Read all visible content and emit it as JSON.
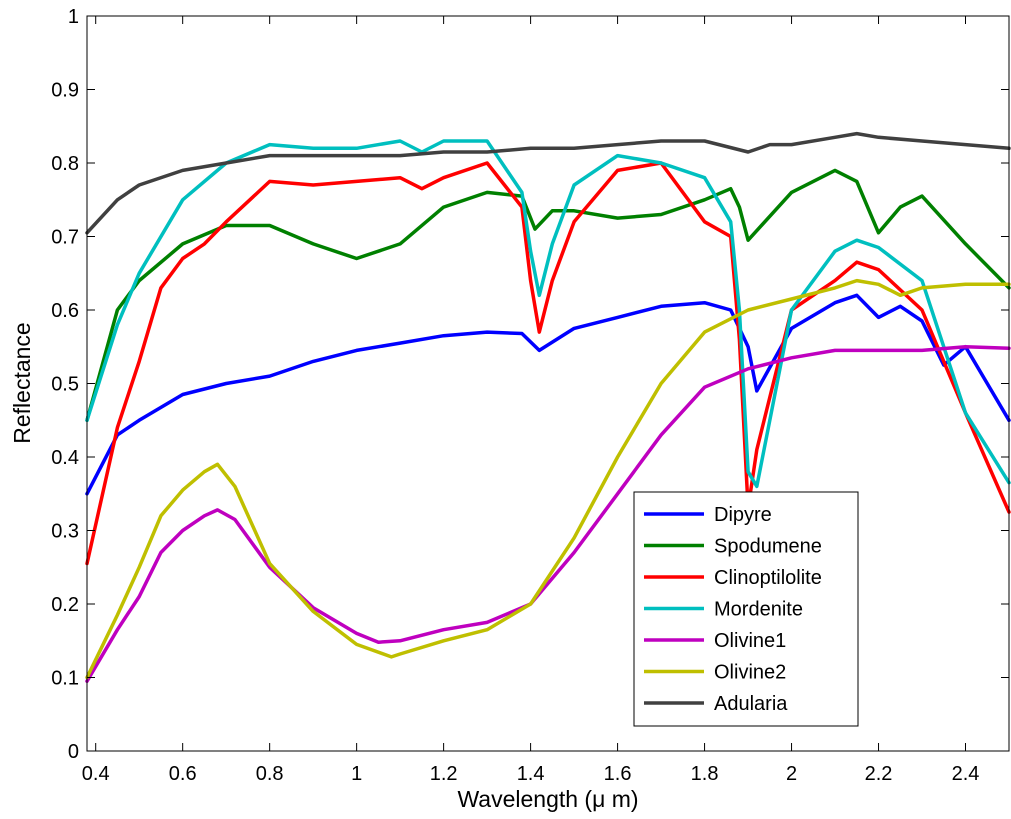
{
  "chart_data": {
    "type": "line",
    "xlabel": "Wavelength (μ m)",
    "ylabel": "Reflectance",
    "xlim": [
      0.38,
      2.5
    ],
    "ylim": [
      0,
      1
    ],
    "x_ticks": [
      "0.4",
      "0.6",
      "0.8",
      "1",
      "1.2",
      "1.4",
      "1.6",
      "1.8",
      "2",
      "2.2",
      "2.4"
    ],
    "y_ticks": [
      "0",
      "0.1",
      "0.2",
      "0.3",
      "0.4",
      "0.5",
      "0.6",
      "0.7",
      "0.8",
      "0.9",
      "1"
    ],
    "grid": false,
    "legend_position": "lower-right",
    "series": [
      {
        "name": "Dipyre",
        "color": "#0000ff",
        "x": [
          0.38,
          0.45,
          0.5,
          0.6,
          0.7,
          0.8,
          0.9,
          1.0,
          1.1,
          1.2,
          1.3,
          1.38,
          1.42,
          1.5,
          1.6,
          1.7,
          1.8,
          1.86,
          1.9,
          1.92,
          2.0,
          2.1,
          2.15,
          2.2,
          2.25,
          2.3,
          2.35,
          2.4,
          2.5
        ],
        "y": [
          0.35,
          0.43,
          0.45,
          0.485,
          0.5,
          0.51,
          0.53,
          0.545,
          0.555,
          0.565,
          0.57,
          0.568,
          0.545,
          0.575,
          0.59,
          0.605,
          0.61,
          0.6,
          0.55,
          0.49,
          0.575,
          0.61,
          0.62,
          0.59,
          0.605,
          0.585,
          0.525,
          0.55,
          0.45
        ]
      },
      {
        "name": "Spodumene",
        "color": "#008000",
        "x": [
          0.38,
          0.45,
          0.5,
          0.6,
          0.7,
          0.8,
          0.9,
          1.0,
          1.1,
          1.2,
          1.3,
          1.38,
          1.41,
          1.45,
          1.5,
          1.6,
          1.7,
          1.8,
          1.86,
          1.88,
          1.9,
          2.0,
          2.1,
          2.15,
          2.2,
          2.25,
          2.3,
          2.4,
          2.5
        ],
        "y": [
          0.45,
          0.6,
          0.64,
          0.69,
          0.715,
          0.715,
          0.69,
          0.67,
          0.69,
          0.74,
          0.76,
          0.755,
          0.71,
          0.735,
          0.735,
          0.725,
          0.73,
          0.75,
          0.765,
          0.74,
          0.695,
          0.76,
          0.79,
          0.775,
          0.705,
          0.74,
          0.755,
          0.69,
          0.63
        ]
      },
      {
        "name": "Clinoptilolite",
        "color": "#ff0000",
        "x": [
          0.38,
          0.45,
          0.5,
          0.55,
          0.6,
          0.65,
          0.7,
          0.8,
          0.9,
          1.0,
          1.1,
          1.15,
          1.2,
          1.3,
          1.38,
          1.4,
          1.42,
          1.45,
          1.5,
          1.6,
          1.7,
          1.8,
          1.86,
          1.88,
          1.9,
          1.92,
          2.0,
          2.1,
          2.15,
          2.2,
          2.3,
          2.4,
          2.5
        ],
        "y": [
          0.255,
          0.44,
          0.53,
          0.63,
          0.67,
          0.69,
          0.72,
          0.775,
          0.77,
          0.775,
          0.78,
          0.765,
          0.78,
          0.8,
          0.74,
          0.64,
          0.57,
          0.64,
          0.72,
          0.79,
          0.8,
          0.72,
          0.7,
          0.56,
          0.33,
          0.41,
          0.6,
          0.64,
          0.665,
          0.655,
          0.6,
          0.46,
          0.325
        ]
      },
      {
        "name": "Mordenite",
        "color": "#00bfbf",
        "x": [
          0.38,
          0.45,
          0.5,
          0.6,
          0.7,
          0.8,
          0.9,
          1.0,
          1.1,
          1.15,
          1.2,
          1.3,
          1.38,
          1.4,
          1.42,
          1.45,
          1.5,
          1.6,
          1.7,
          1.8,
          1.86,
          1.88,
          1.9,
          1.92,
          2.0,
          2.1,
          2.15,
          2.2,
          2.3,
          2.4,
          2.5
        ],
        "y": [
          0.45,
          0.58,
          0.65,
          0.75,
          0.8,
          0.825,
          0.82,
          0.82,
          0.83,
          0.815,
          0.83,
          0.83,
          0.76,
          0.68,
          0.62,
          0.69,
          0.77,
          0.81,
          0.8,
          0.78,
          0.72,
          0.6,
          0.38,
          0.36,
          0.6,
          0.68,
          0.695,
          0.685,
          0.64,
          0.46,
          0.365
        ]
      },
      {
        "name": "Olivine1",
        "color": "#bf00bf",
        "x": [
          0.38,
          0.45,
          0.5,
          0.55,
          0.6,
          0.65,
          0.68,
          0.72,
          0.8,
          0.9,
          1.0,
          1.05,
          1.1,
          1.2,
          1.3,
          1.4,
          1.5,
          1.6,
          1.7,
          1.8,
          1.9,
          2.0,
          2.1,
          2.2,
          2.3,
          2.4,
          2.5
        ],
        "y": [
          0.095,
          0.165,
          0.21,
          0.27,
          0.3,
          0.32,
          0.328,
          0.315,
          0.25,
          0.195,
          0.16,
          0.148,
          0.15,
          0.165,
          0.175,
          0.2,
          0.27,
          0.35,
          0.43,
          0.495,
          0.52,
          0.535,
          0.545,
          0.545,
          0.545,
          0.55,
          0.548
        ]
      },
      {
        "name": "Olivine2",
        "color": "#bfbf00",
        "x": [
          0.38,
          0.45,
          0.5,
          0.55,
          0.6,
          0.65,
          0.68,
          0.72,
          0.8,
          0.9,
          1.0,
          1.08,
          1.1,
          1.2,
          1.3,
          1.4,
          1.5,
          1.6,
          1.7,
          1.8,
          1.9,
          2.0,
          2.1,
          2.15,
          2.2,
          2.25,
          2.3,
          2.4,
          2.5
        ],
        "y": [
          0.1,
          0.185,
          0.25,
          0.32,
          0.355,
          0.38,
          0.39,
          0.36,
          0.255,
          0.19,
          0.145,
          0.128,
          0.132,
          0.15,
          0.165,
          0.2,
          0.29,
          0.4,
          0.5,
          0.57,
          0.6,
          0.615,
          0.63,
          0.64,
          0.635,
          0.62,
          0.63,
          0.635,
          0.635
        ]
      },
      {
        "name": "Adularia",
        "color": "#404040",
        "x": [
          0.38,
          0.45,
          0.5,
          0.6,
          0.7,
          0.8,
          0.9,
          1.0,
          1.1,
          1.2,
          1.3,
          1.4,
          1.5,
          1.6,
          1.7,
          1.8,
          1.9,
          1.95,
          2.0,
          2.1,
          2.15,
          2.2,
          2.3,
          2.4,
          2.5
        ],
        "y": [
          0.705,
          0.75,
          0.77,
          0.79,
          0.8,
          0.81,
          0.81,
          0.81,
          0.81,
          0.815,
          0.815,
          0.82,
          0.82,
          0.825,
          0.83,
          0.83,
          0.815,
          0.825,
          0.825,
          0.835,
          0.84,
          0.835,
          0.83,
          0.825,
          0.82
        ]
      }
    ]
  }
}
